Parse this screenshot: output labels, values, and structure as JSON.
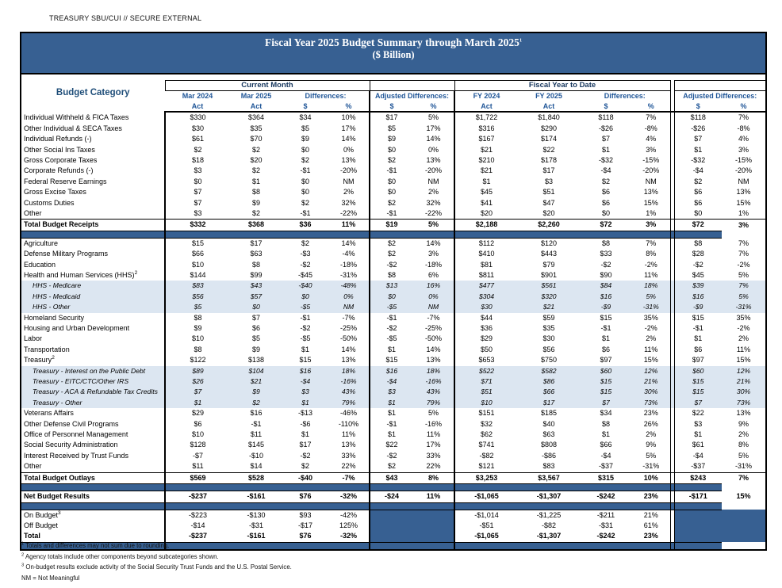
{
  "banner": "TREASURY SBU/CUI // SECURE EXTERNAL",
  "title": {
    "line1": "Fiscal Year 2025 Budget Summary through March 2025",
    "line1_sup": "1",
    "line2": "($ Billion)"
  },
  "header": {
    "category": "Budget Category",
    "current_month": "Current Month",
    "fiscal_year_to_date": "Fiscal Year to Date",
    "m24": "Mar 2024",
    "m25": "Mar 2025",
    "fy24": "FY 2024",
    "fy25": "FY 2025",
    "differences": "Differences:",
    "adjusted_differences": "Adjusted Differences:",
    "act": "Act",
    "dollar": "$",
    "pct": "%"
  },
  "colors": {
    "band_blue": "#376092",
    "subrow_blue": "#DCE6F1",
    "header_text_blue": "#1F5597",
    "group_text_navy": "#17375E"
  },
  "rows": [
    {
      "t": "item",
      "label": "Individual Withheld & FICA Taxes",
      "v": [
        "$330",
        "$364",
        "$34",
        "10%",
        "$17",
        "5%",
        "$1,722",
        "$1,840",
        "$118",
        "7%",
        "$118",
        "7%"
      ]
    },
    {
      "t": "item",
      "label": "Other Individual & SECA Taxes",
      "v": [
        "$30",
        "$35",
        "$5",
        "17%",
        "$5",
        "17%",
        "$316",
        "$290",
        "-$26",
        "-8%",
        "-$26",
        "-8%"
      ]
    },
    {
      "t": "item",
      "label": "Individual Refunds (-)",
      "v": [
        "$61",
        "$70",
        "$9",
        "14%",
        "$9",
        "14%",
        "$167",
        "$174",
        "$7",
        "4%",
        "$7",
        "4%"
      ]
    },
    {
      "t": "item",
      "label": "Other Social Ins Taxes",
      "v": [
        "$2",
        "$2",
        "$0",
        "0%",
        "$0",
        "0%",
        "$21",
        "$22",
        "$1",
        "3%",
        "$1",
        "3%"
      ]
    },
    {
      "t": "item",
      "label": "Gross Corporate Taxes",
      "v": [
        "$18",
        "$20",
        "$2",
        "13%",
        "$2",
        "13%",
        "$210",
        "$178",
        "-$32",
        "-15%",
        "-$32",
        "-15%"
      ]
    },
    {
      "t": "item",
      "label": "Corporate Refunds (-)",
      "v": [
        "$3",
        "$2",
        "-$1",
        "-20%",
        "-$1",
        "-20%",
        "$21",
        "$17",
        "-$4",
        "-20%",
        "-$4",
        "-20%"
      ]
    },
    {
      "t": "item",
      "label": "Federal Reserve Earnings",
      "v": [
        "$0",
        "$1",
        "$0",
        "NM",
        "$0",
        "NM",
        "$1",
        "$3",
        "$2",
        "NM",
        "$2",
        "NM"
      ]
    },
    {
      "t": "item",
      "label": "Gross Excise Taxes",
      "v": [
        "$7",
        "$8",
        "$0",
        "2%",
        "$0",
        "2%",
        "$45",
        "$51",
        "$6",
        "13%",
        "$6",
        "13%"
      ]
    },
    {
      "t": "item",
      "label": "Customs Duties",
      "v": [
        "$7",
        "$9",
        "$2",
        "32%",
        "$2",
        "32%",
        "$41",
        "$47",
        "$6",
        "15%",
        "$6",
        "15%"
      ]
    },
    {
      "t": "item",
      "label": "Other",
      "v": [
        "$3",
        "$2",
        "-$1",
        "-22%",
        "-$1",
        "-22%",
        "$20",
        "$20",
        "$0",
        "1%",
        "$0",
        "1%"
      ]
    },
    {
      "t": "total",
      "label": "Total Budget Receipts",
      "v": [
        "$332",
        "$368",
        "$36",
        "11%",
        "$19",
        "5%",
        "$2,188",
        "$2,260",
        "$72",
        "3%",
        "$72",
        "3%"
      ]
    },
    {
      "t": "band"
    },
    {
      "t": "item",
      "label": "Agriculture",
      "v": [
        "$15",
        "$17",
        "$2",
        "14%",
        "$2",
        "14%",
        "$112",
        "$120",
        "$8",
        "7%",
        "$8",
        "7%"
      ]
    },
    {
      "t": "item",
      "label": "Defense Military Programs",
      "v": [
        "$66",
        "$63",
        "-$3",
        "-4%",
        "$2",
        "3%",
        "$410",
        "$443",
        "$33",
        "8%",
        "$28",
        "7%"
      ]
    },
    {
      "t": "item",
      "label": "Education",
      "v": [
        "$10",
        "$8",
        "-$2",
        "-18%",
        "-$2",
        "-18%",
        "$81",
        "$79",
        "-$2",
        "-2%",
        "-$2",
        "-2%"
      ]
    },
    {
      "t": "item",
      "label": "Health and Human Services (HHS)",
      "sup": "2",
      "v": [
        "$144",
        "$99",
        "-$45",
        "-31%",
        "$8",
        "6%",
        "$811",
        "$901",
        "$90",
        "11%",
        "$45",
        "5%"
      ]
    },
    {
      "t": "sub",
      "label": "HHS - Medicare",
      "v": [
        "$83",
        "$43",
        "-$40",
        "-48%",
        "$13",
        "16%",
        "$477",
        "$561",
        "$84",
        "18%",
        "$39",
        "7%"
      ]
    },
    {
      "t": "sub",
      "label": "HHS - Medicaid",
      "v": [
        "$56",
        "$57",
        "$0",
        "0%",
        "$0",
        "0%",
        "$304",
        "$320",
        "$16",
        "5%",
        "$16",
        "5%"
      ]
    },
    {
      "t": "sub",
      "label": "HHS - Other",
      "v": [
        "$5",
        "$0",
        "-$5",
        "NM",
        "-$5",
        "NM",
        "$30",
        "$21",
        "-$9",
        "-31%",
        "-$9",
        "-31%"
      ]
    },
    {
      "t": "item",
      "label": "Homeland Security",
      "v": [
        "$8",
        "$7",
        "-$1",
        "-7%",
        "-$1",
        "-7%",
        "$44",
        "$59",
        "$15",
        "35%",
        "$15",
        "35%"
      ]
    },
    {
      "t": "item",
      "label": "Housing and Urban Development",
      "v": [
        "$9",
        "$6",
        "-$2",
        "-25%",
        "-$2",
        "-25%",
        "$36",
        "$35",
        "-$1",
        "-2%",
        "-$1",
        "-2%"
      ]
    },
    {
      "t": "item",
      "label": "Labor",
      "v": [
        "$10",
        "$5",
        "-$5",
        "-50%",
        "-$5",
        "-50%",
        "$29",
        "$30",
        "$1",
        "2%",
        "$1",
        "2%"
      ]
    },
    {
      "t": "item",
      "label": "Transportation",
      "v": [
        "$8",
        "$9",
        "$1",
        "14%",
        "$1",
        "14%",
        "$50",
        "$56",
        "$6",
        "11%",
        "$6",
        "11%"
      ]
    },
    {
      "t": "item",
      "label": "Treasury",
      "sup": "2",
      "v": [
        "$122",
        "$138",
        "$15",
        "13%",
        "$15",
        "13%",
        "$653",
        "$750",
        "$97",
        "15%",
        "$97",
        "15%"
      ]
    },
    {
      "t": "sub",
      "label": "Treasury - Interest on the Public Debt",
      "v": [
        "$89",
        "$104",
        "$16",
        "18%",
        "$16",
        "18%",
        "$522",
        "$582",
        "$60",
        "12%",
        "$60",
        "12%"
      ]
    },
    {
      "t": "sub",
      "label": "Treasury - EITC/CTC/Other IRS",
      "v": [
        "$26",
        "$21",
        "-$4",
        "-16%",
        "-$4",
        "-16%",
        "$71",
        "$86",
        "$15",
        "21%",
        "$15",
        "21%"
      ]
    },
    {
      "t": "sub",
      "label": "Treasury - ACA & Refundable Tax Credits",
      "v": [
        "$7",
        "$9",
        "$3",
        "43%",
        "$3",
        "43%",
        "$51",
        "$66",
        "$15",
        "30%",
        "$15",
        "30%"
      ]
    },
    {
      "t": "sub",
      "label": "Treasury - Other",
      "v": [
        "$1",
        "$2",
        "$1",
        "79%",
        "$1",
        "79%",
        "$10",
        "$17",
        "$7",
        "73%",
        "$7",
        "73%"
      ]
    },
    {
      "t": "item",
      "label": "Veterans Affairs",
      "v": [
        "$29",
        "$16",
        "-$13",
        "-46%",
        "$1",
        "5%",
        "$151",
        "$185",
        "$34",
        "23%",
        "$22",
        "13%"
      ]
    },
    {
      "t": "item",
      "label": "Other Defense Civil Programs",
      "v": [
        "$6",
        "-$1",
        "-$6",
        "-110%",
        "-$1",
        "-16%",
        "$32",
        "$40",
        "$8",
        "26%",
        "$3",
        "9%"
      ]
    },
    {
      "t": "item",
      "label": "Office of Personnel Management",
      "v": [
        "$10",
        "$11",
        "$1",
        "11%",
        "$1",
        "11%",
        "$62",
        "$63",
        "$1",
        "2%",
        "$1",
        "2%"
      ]
    },
    {
      "t": "item",
      "label": "Social Security Administration",
      "v": [
        "$128",
        "$145",
        "$17",
        "13%",
        "$22",
        "17%",
        "$741",
        "$808",
        "$66",
        "9%",
        "$61",
        "8%"
      ]
    },
    {
      "t": "item",
      "label": "Interest Received by Trust Funds",
      "v": [
        "-$7",
        "-$10",
        "-$2",
        "33%",
        "-$2",
        "33%",
        "-$82",
        "-$86",
        "-$4",
        "5%",
        "-$4",
        "5%"
      ]
    },
    {
      "t": "item",
      "label": "Other",
      "v": [
        "$11",
        "$14",
        "$2",
        "22%",
        "$2",
        "22%",
        "$121",
        "$83",
        "-$37",
        "-31%",
        "-$37",
        "-31%"
      ]
    },
    {
      "t": "total",
      "label": "Total Budget Outlays",
      "v": [
        "$569",
        "$528",
        "-$40",
        "-7%",
        "$43",
        "8%",
        "$3,253",
        "$3,567",
        "$315",
        "10%",
        "$243",
        "7%"
      ]
    },
    {
      "t": "band"
    },
    {
      "t": "net",
      "label": "Net Budget Results",
      "v": [
        "-$237",
        "-$161",
        "$76",
        "-32%",
        "-$24",
        "11%",
        "-$1,065",
        "-$1,307",
        "-$242",
        "23%",
        "-$171",
        "15%"
      ]
    },
    {
      "t": "band"
    },
    {
      "t": "bottom",
      "label": "On Budget",
      "sup": "3",
      "v": [
        "-$223",
        "-$130",
        "$93",
        "-42%",
        null,
        null,
        "-$1,014",
        "-$1,225",
        "-$211",
        "21%",
        null,
        null
      ]
    },
    {
      "t": "bottom",
      "label": "Off Budget",
      "v": [
        "-$14",
        "-$31",
        "-$17",
        "125%",
        null,
        null,
        "-$51",
        "-$82",
        "-$31",
        "61%",
        null,
        null
      ]
    },
    {
      "t": "bottom-total",
      "label": "Total",
      "v": [
        "-$237",
        "-$161",
        "$76",
        "-32%",
        null,
        null,
        "-$1,065",
        "-$1,307",
        "-$242",
        "23%",
        null,
        null
      ]
    },
    {
      "t": "band"
    }
  ],
  "footnotes": [
    {
      "sup": "1",
      "text": "Totals and differences may not sum due to rounding."
    },
    {
      "sup": "2",
      "text": "Agency totals include other components beyond subcategories shown."
    },
    {
      "sup": "3",
      "text": "On-budget results exclude activity of the Social Security Trust Funds and the U.S. Postal Service."
    },
    {
      "sup": "",
      "text": "NM = Not Meaningful"
    }
  ]
}
